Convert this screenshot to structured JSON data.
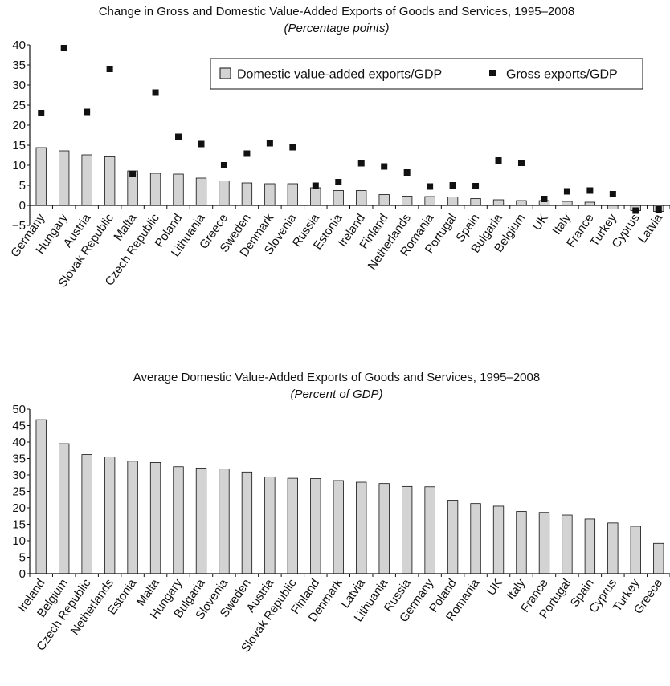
{
  "chart_data": [
    {
      "type": "bar",
      "title": "Change in Gross and Domestic Value-Added Exports of Goods and Services, 1995–2008",
      "subtitle": "(Percentage points)",
      "ylim": [
        -5,
        40
      ],
      "yticks": [
        "−5",
        "0",
        "5",
        "10",
        "15",
        "20",
        "25",
        "30",
        "35",
        "40"
      ],
      "legend_position": "top-right",
      "categories": [
        "Germany",
        "Hungary",
        "Austria",
        "Slovak Republic",
        "Malta",
        "Czech Republic",
        "Poland",
        "Lithuania",
        "Greece",
        "Sweden",
        "Denmark",
        "Slovenia",
        "Russia",
        "Estonia",
        "Ireland",
        "Finland",
        "Netherlands",
        "Romania",
        "Portugal",
        "Spain",
        "Bulgaria",
        "Belgium",
        "UK",
        "Italy",
        "France",
        "Turkey",
        "Cyprus",
        "Latvia"
      ],
      "series": [
        {
          "name": "Domestic value-added exports/GDP",
          "kind": "bar",
          "color": "#d3d3d3",
          "values": [
            14.4,
            13.6,
            12.6,
            12.1,
            8.6,
            8.0,
            7.8,
            6.8,
            6.1,
            5.6,
            5.4,
            5.4,
            4.4,
            3.7,
            3.7,
            2.7,
            2.3,
            2.2,
            2.1,
            1.7,
            1.4,
            1.2,
            1.2,
            1.0,
            0.8,
            -0.9,
            -1.3,
            -1.5
          ]
        },
        {
          "name": "Gross exports/GDP",
          "kind": "marker",
          "color": "#111111",
          "values": [
            23.0,
            39.2,
            23.3,
            34.0,
            7.8,
            28.1,
            17.1,
            15.3,
            10.0,
            12.9,
            15.5,
            14.5,
            4.9,
            5.8,
            10.5,
            9.7,
            8.2,
            4.7,
            5.0,
            4.8,
            11.2,
            10.6,
            1.6,
            3.5,
            3.7,
            2.8,
            -1.3,
            -1.0
          ]
        }
      ]
    },
    {
      "type": "bar",
      "title": "Average Domestic Value-Added Exports of Goods and Services, 1995–2008",
      "subtitle": "(Percent of GDP)",
      "ylim": [
        0,
        50
      ],
      "yticks": [
        "0",
        "5",
        "10",
        "15",
        "20",
        "25",
        "30",
        "35",
        "40",
        "45",
        "50"
      ],
      "categories": [
        "Ireland",
        "Belgium",
        "Czech Republic",
        "Netherlands",
        "Estonia",
        "Malta",
        "Hungary",
        "Bulgaria",
        "Slovenia",
        "Sweden",
        "Austria",
        "Slovak Republic",
        "Finland",
        "Denmark",
        "Latvia",
        "Lithuania",
        "Russia",
        "Germany",
        "Poland",
        "Romania",
        "UK",
        "Italy",
        "France",
        "Portugal",
        "Spain",
        "Cyprus",
        "Turkey",
        "Greece"
      ],
      "series": [
        {
          "kind": "bar",
          "color": "#d3d3d3",
          "values": [
            46.8,
            39.5,
            36.2,
            35.5,
            34.2,
            33.8,
            32.5,
            32.1,
            31.8,
            30.9,
            29.4,
            29.0,
            28.9,
            28.3,
            27.8,
            27.4,
            26.5,
            26.4,
            22.3,
            21.3,
            20.5,
            18.9,
            18.6,
            17.8,
            16.6,
            15.4,
            14.4,
            9.2
          ]
        }
      ]
    }
  ]
}
